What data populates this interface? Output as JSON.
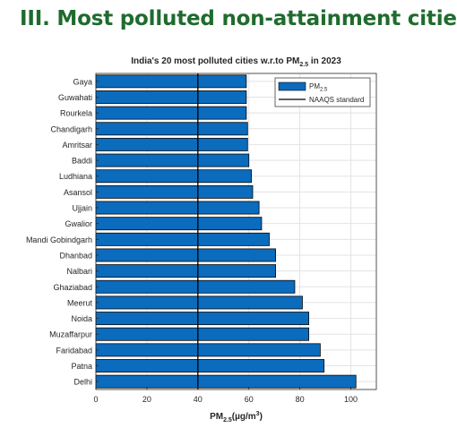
{
  "slide": {
    "title": "III. Most polluted non-attainment cities"
  },
  "colors": {
    "title": "#1f6b2e",
    "bar_fill": "#0b6bbd",
    "bar_stroke": "#0a0a0a",
    "reference_line": "#000000",
    "grid": "#e3e3e3"
  },
  "chart_data": {
    "type": "bar",
    "orientation": "horizontal",
    "title_parts": {
      "before": "India's 20 most polluted cities w.r.to PM",
      "sub": "2.5",
      "after": " in 2023"
    },
    "xlabel_parts": {
      "base": "PM",
      "sub": "2.5",
      "mid": "(µg/m",
      "sup": "3",
      "end": ")"
    },
    "ylabel": "",
    "xlim": [
      0,
      110
    ],
    "xticks": [
      0,
      20,
      40,
      60,
      80,
      100
    ],
    "grid": true,
    "legend_position": "top-right",
    "legend": [
      {
        "kind": "bar",
        "base": "PM",
        "sub": "2.5"
      },
      {
        "kind": "line",
        "label": "NAAQS standard"
      }
    ],
    "reference_line": {
      "name": "NAAQS standard",
      "value": 40
    },
    "categories": [
      "Gaya",
      "Guwahati",
      "Rourkela",
      "Chandigarh",
      "Amritsar",
      "Baddi",
      "Ludhiana",
      "Asansol",
      "Ujjain",
      "Gwalior",
      "Mandi Gobindgarh",
      "Dhanbad",
      "Nalbari",
      "Ghaziabad",
      "Meerut",
      "Noida",
      "Muzaffarpur",
      "Faridabad",
      "Patna",
      "Delhi"
    ],
    "series": [
      {
        "values": [
          59,
          59,
          59,
          59.5,
          59.5,
          60,
          61,
          61.5,
          64,
          65,
          68,
          70.5,
          70.5,
          78,
          81,
          83.5,
          83.5,
          88,
          89.5,
          102
        ]
      }
    ]
  }
}
